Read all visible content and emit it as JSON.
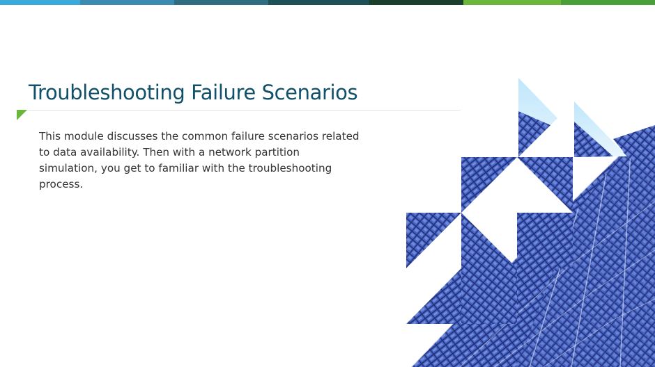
{
  "slide": {
    "title": "Troubleshooting Failure Scenarios",
    "body": "This module discusses the common failure scenarios related to data availability. Then with a network partition simulation, you get to familiar with the troubleshooting process."
  },
  "colors": {
    "title": "#10506a",
    "marker": "#6bb73a",
    "glass_dark": "#1f2f78",
    "glass_mid": "#4a64c4",
    "glass_light": "#8fb0ef",
    "sky": "#bfe6fb",
    "stripe": [
      "#3ba9d9",
      "#3a8cb0",
      "#2f6e81",
      "#1e5156",
      "#1b3f2d",
      "#6bb73a",
      "#49a038"
    ]
  },
  "icons": {
    "title_marker": "green-corner-triangle-icon",
    "building": "glass-building-mosaic"
  }
}
